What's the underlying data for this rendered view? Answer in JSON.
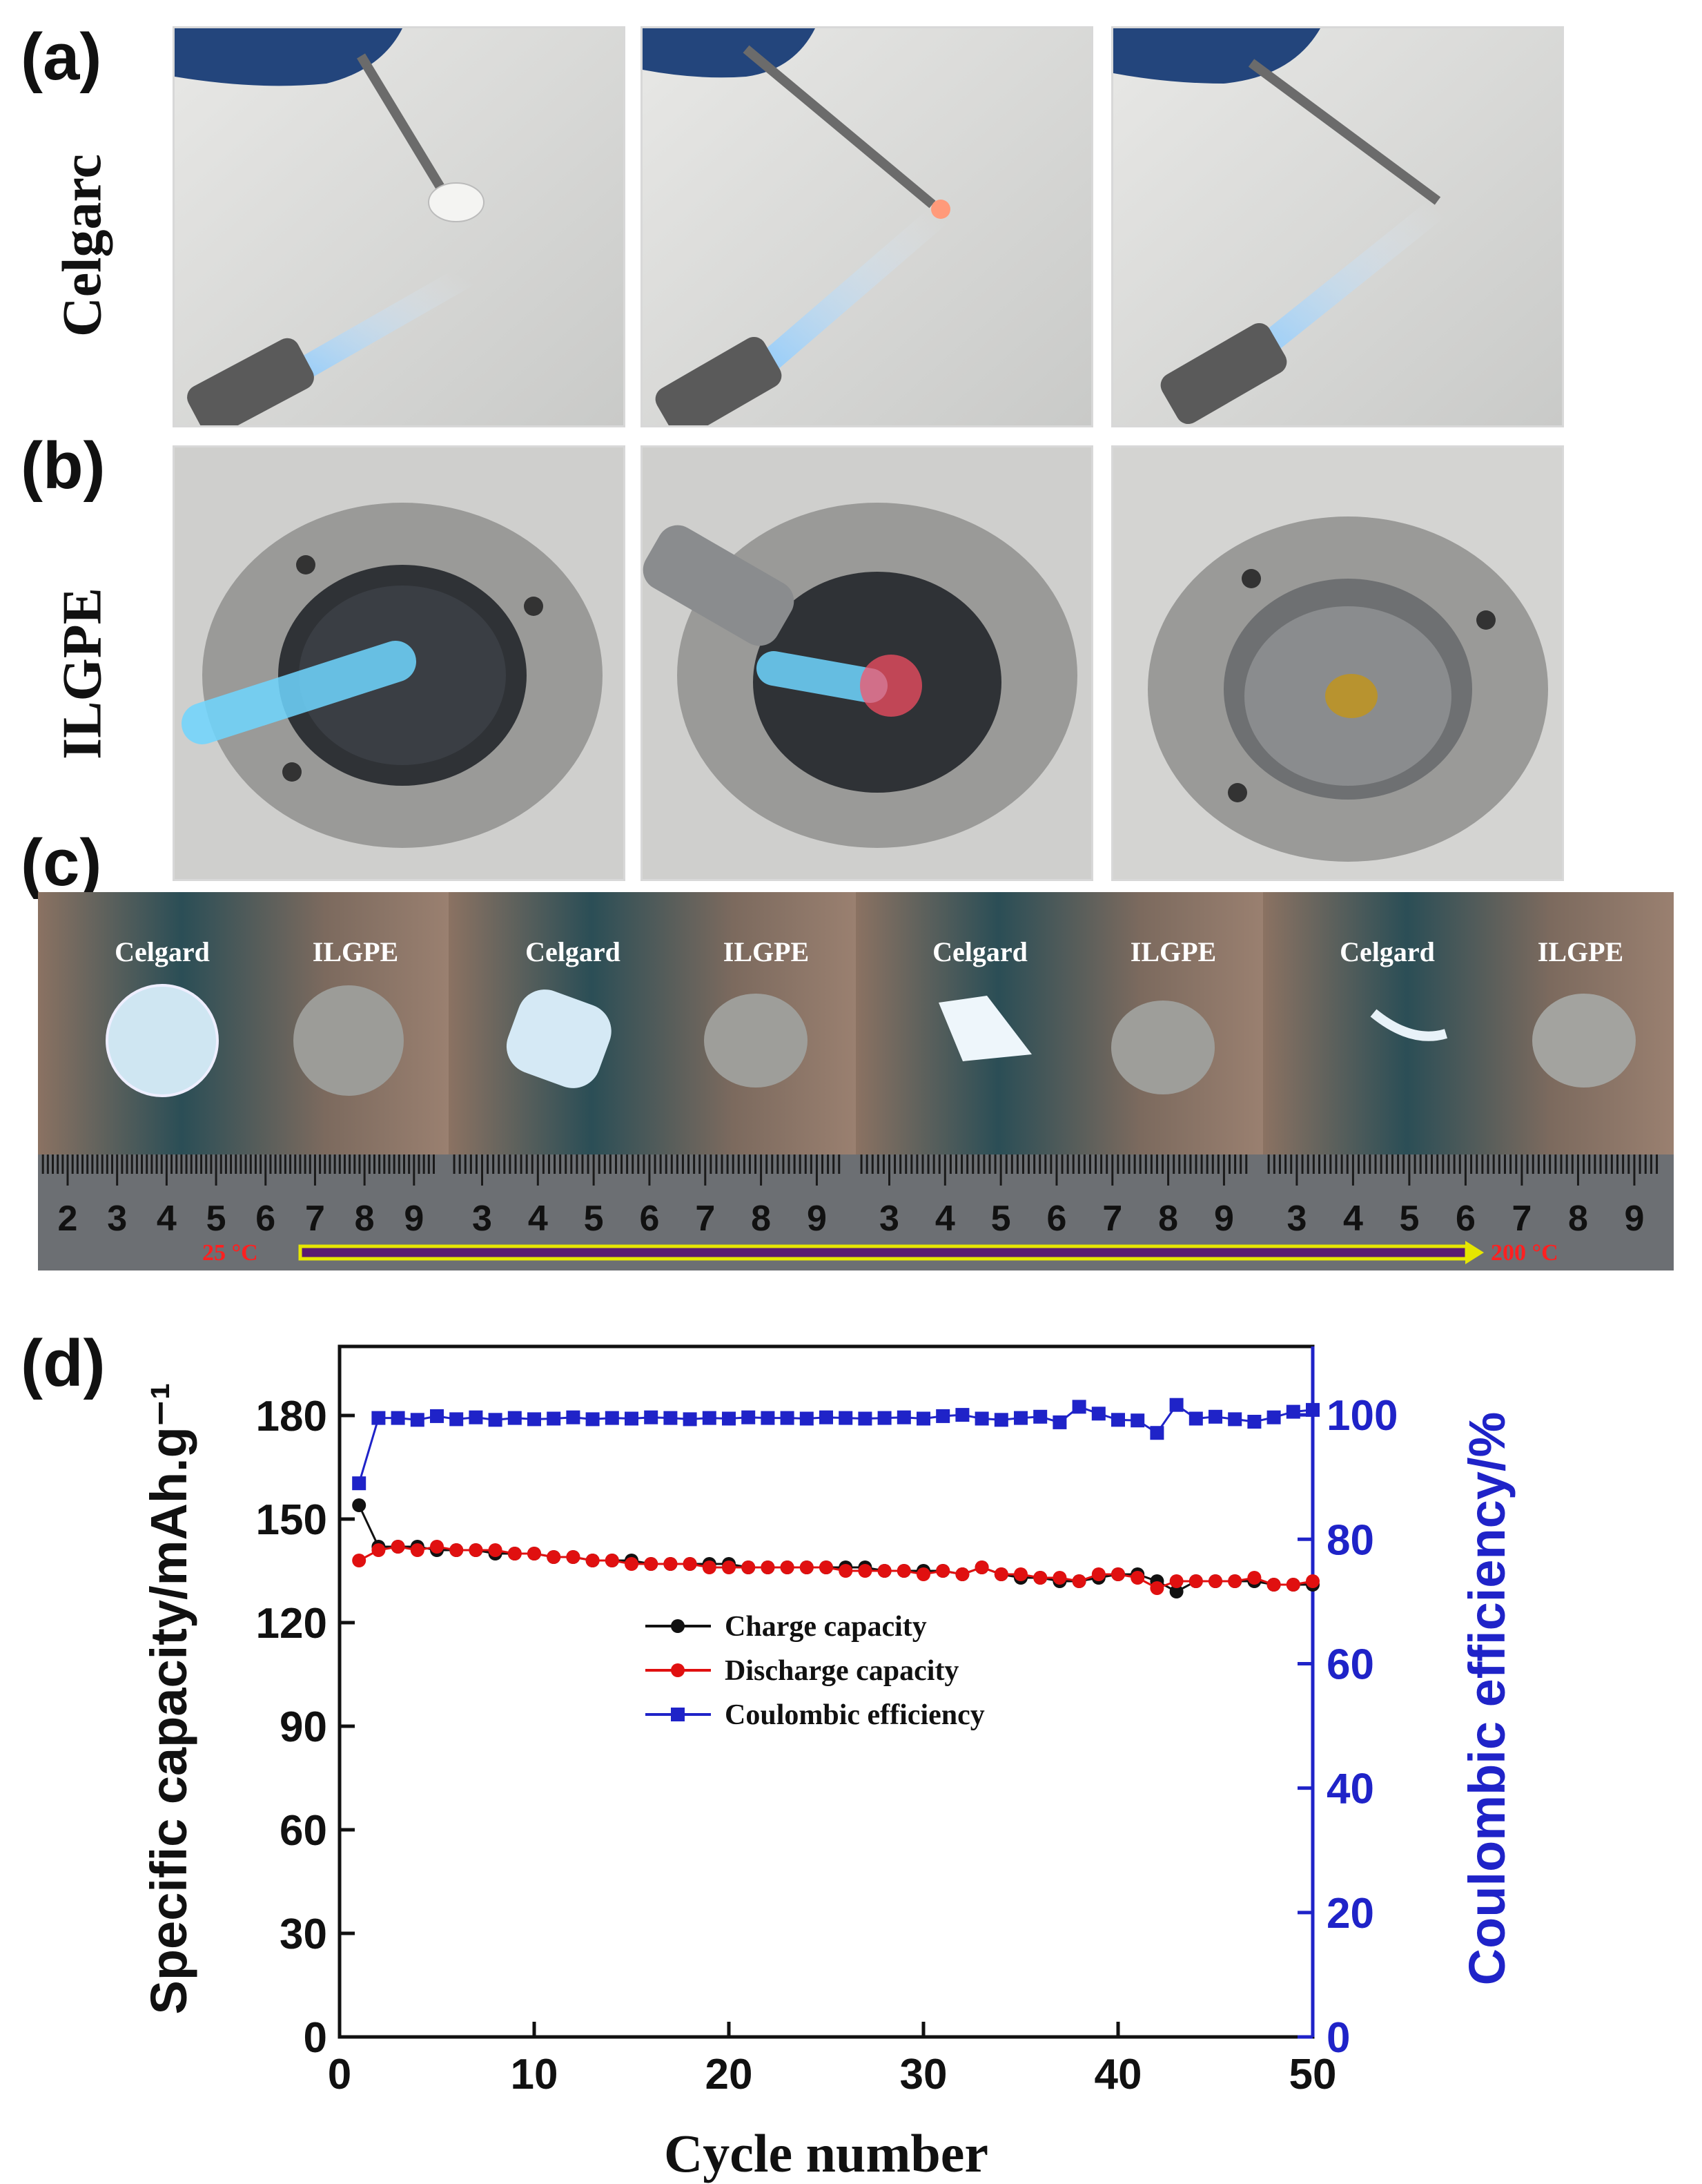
{
  "panels": {
    "a": {
      "letter": "(a)",
      "row_label": "Celgarc"
    },
    "b": {
      "letter": "(b)",
      "row_label": "ILGPE"
    },
    "c": {
      "letter": "(c)",
      "frames": [
        {
          "left_label": "Celgard",
          "right_label": "ILGPE"
        },
        {
          "left_label": "Celgard",
          "right_label": "ILGPE"
        },
        {
          "left_label": "Celgard",
          "right_label": "ILGPE"
        },
        {
          "left_label": "Celgard",
          "right_label": "ILGPE"
        }
      ],
      "ruler_numbers": [
        [
          "2",
          "3",
          "4",
          "5",
          "6",
          "7",
          "8",
          "9"
        ],
        [
          "3",
          "4",
          "5",
          "6",
          "7",
          "8",
          "9"
        ],
        [
          "3",
          "4",
          "5",
          "6",
          "7",
          "8",
          "9"
        ],
        [
          "3",
          "4",
          "5",
          "6",
          "7",
          "8",
          "9"
        ]
      ],
      "temp_start": "25 °C",
      "temp_end": "200 °C"
    },
    "d": {
      "letter": "(d)"
    }
  },
  "chart_data": {
    "type": "line",
    "xlabel": "Cycle number",
    "ylabel": "Specific capacity/mAh.g⁻¹",
    "y2label": "Coulombic efficiency/%",
    "xlim": [
      0,
      50
    ],
    "ylim": [
      0,
      200
    ],
    "y2lim": [
      0,
      111
    ],
    "xticks": [
      0,
      10,
      20,
      30,
      40,
      50
    ],
    "yticks": [
      0,
      30,
      60,
      90,
      120,
      150,
      180
    ],
    "y2ticks": [
      0,
      20,
      40,
      60,
      80,
      100
    ],
    "legend_position": "center",
    "series": [
      {
        "name": "Charge capacity",
        "axis": "left",
        "color": "#111111",
        "marker": "circle",
        "x": [
          1,
          2,
          3,
          4,
          5,
          6,
          7,
          8,
          9,
          10,
          11,
          12,
          13,
          14,
          15,
          16,
          17,
          18,
          19,
          20,
          21,
          22,
          23,
          24,
          25,
          26,
          27,
          28,
          29,
          30,
          31,
          32,
          33,
          34,
          35,
          36,
          37,
          38,
          39,
          40,
          41,
          42,
          43,
          44,
          45,
          46,
          47,
          48,
          49,
          50
        ],
        "values": [
          154,
          142,
          142,
          142,
          141,
          141,
          141,
          140,
          140,
          140,
          139,
          139,
          138,
          138,
          138,
          137,
          137,
          137,
          137,
          137,
          136,
          136,
          136,
          136,
          136,
          136,
          136,
          135,
          135,
          135,
          135,
          134,
          136,
          134,
          133,
          133,
          132,
          132,
          133,
          134,
          134,
          132,
          129,
          132,
          132,
          132,
          132,
          131,
          131,
          131
        ]
      },
      {
        "name": "Discharge capacity",
        "axis": "left",
        "color": "#e01010",
        "marker": "circle",
        "x": [
          1,
          2,
          3,
          4,
          5,
          6,
          7,
          8,
          9,
          10,
          11,
          12,
          13,
          14,
          15,
          16,
          17,
          18,
          19,
          20,
          21,
          22,
          23,
          24,
          25,
          26,
          27,
          28,
          29,
          30,
          31,
          32,
          33,
          34,
          35,
          36,
          37,
          38,
          39,
          40,
          41,
          42,
          43,
          44,
          45,
          46,
          47,
          48,
          49,
          50
        ],
        "values": [
          138,
          141,
          142,
          141,
          142,
          141,
          141,
          141,
          140,
          140,
          139,
          139,
          138,
          138,
          137,
          137,
          137,
          137,
          136,
          136,
          136,
          136,
          136,
          136,
          136,
          135,
          135,
          135,
          135,
          134,
          135,
          134,
          136,
          134,
          134,
          133,
          133,
          132,
          134,
          134,
          133,
          130,
          132,
          132,
          132,
          132,
          133,
          131,
          131,
          132
        ]
      },
      {
        "name": "Coulombic efficiency",
        "axis": "right",
        "color": "#1f23c8",
        "marker": "square",
        "x": [
          1,
          2,
          3,
          4,
          5,
          6,
          7,
          8,
          9,
          10,
          11,
          12,
          13,
          14,
          15,
          16,
          17,
          18,
          19,
          20,
          21,
          22,
          23,
          24,
          25,
          26,
          27,
          28,
          29,
          30,
          31,
          32,
          33,
          34,
          35,
          36,
          37,
          38,
          39,
          40,
          41,
          42,
          43,
          44,
          45,
          46,
          47,
          48,
          49,
          50
        ],
        "values": [
          89,
          99.5,
          99.5,
          99.2,
          99.8,
          99.3,
          99.6,
          99.2,
          99.5,
          99.3,
          99.4,
          99.6,
          99.3,
          99.5,
          99.4,
          99.6,
          99.5,
          99.3,
          99.5,
          99.4,
          99.6,
          99.5,
          99.5,
          99.4,
          99.6,
          99.5,
          99.4,
          99.5,
          99.6,
          99.4,
          99.8,
          100,
          99.4,
          99.2,
          99.5,
          99.7,
          98.8,
          101.3,
          100.2,
          99.2,
          99.1,
          97.1,
          101.6,
          99.4,
          99.7,
          99.3,
          98.9,
          99.6,
          100.5,
          100.8
        ]
      }
    ]
  }
}
